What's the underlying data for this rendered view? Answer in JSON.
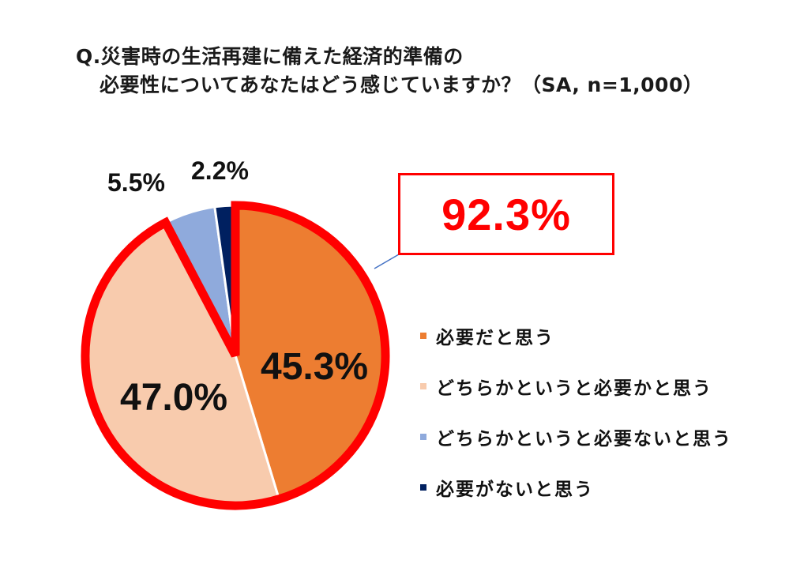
{
  "title": {
    "line1": "Q.災害時の生活再建に備えた経済的準備の",
    "line2": "必要性についてあなたはどう感じていますか？（SA, n=1,000）"
  },
  "callout": {
    "value": "92.3%",
    "color": "#ff0000"
  },
  "labels": {
    "slice1": "45.3%",
    "slice2": "47.0%",
    "slice3": "5.5%",
    "slice4": "2.2%"
  },
  "legend": {
    "items": [
      {
        "label": "必要だと思う",
        "color": "#ed7d31"
      },
      {
        "label": "どちらかというと必要かと思う",
        "color": "#f8cbad"
      },
      {
        "label": "どちらかというと必要ないと思う",
        "color": "#8faadc"
      },
      {
        "label": "必要がないと思う",
        "color": "#002060"
      }
    ]
  },
  "chart_data": {
    "type": "pie",
    "title": "Q.災害時の生活再建に備えた経済的準備の必要性についてあなたはどう感じていますか？（SA, n=1,000）",
    "categories": [
      "必要だと思う",
      "どちらかというと必要かと思う",
      "どちらかというと必要ないと思う",
      "必要がないと思う"
    ],
    "values": [
      45.3,
      47.0,
      5.5,
      2.2
    ],
    "unit": "%",
    "colors": [
      "#ed7d31",
      "#f8cbad",
      "#8faadc",
      "#002060"
    ],
    "start_angle": "12 o'clock, clockwise",
    "highlight": {
      "label": "92.3%",
      "slices": [
        "必要だと思う",
        "どちらかというと必要かと思う"
      ],
      "outline_color": "#ff0000"
    },
    "legend_position": "right",
    "sample_size": "n=1,000"
  }
}
